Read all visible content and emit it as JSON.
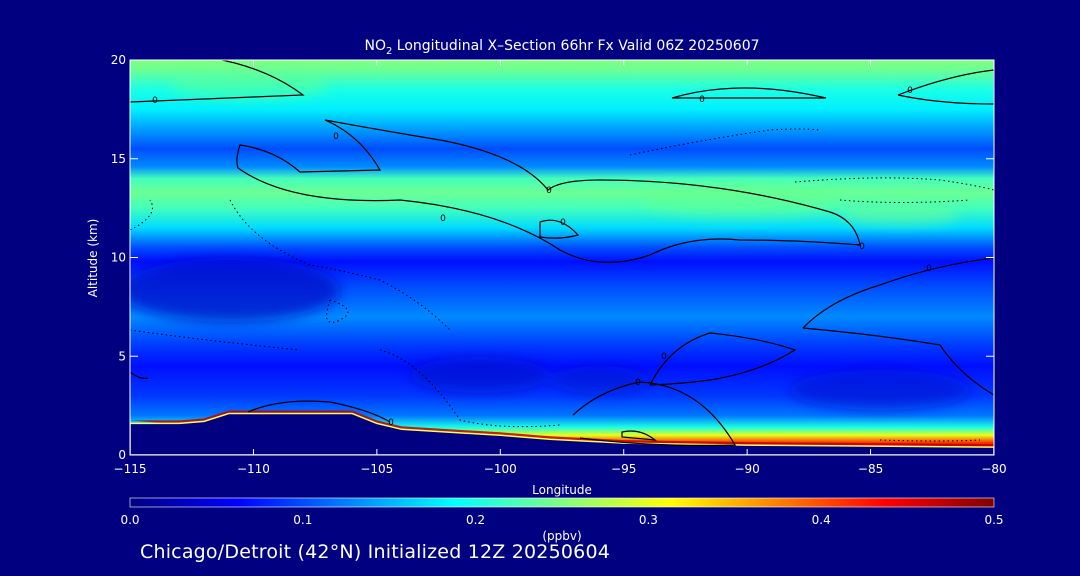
{
  "chart_data": {
    "type": "heatmap",
    "title": {
      "prefix": "NO",
      "subscript": "2",
      "suffix": " Longitudinal X–Section 66hr  Fx Valid 06Z 20250607"
    },
    "xlabel": "Longitude",
    "ylabel": "Altitude (km)",
    "xlim": [
      -115,
      -80
    ],
    "ylim": [
      0,
      20
    ],
    "x_ticks": [
      -115,
      -110,
      -105,
      -100,
      -95,
      -90,
      -85,
      -80
    ],
    "x_tick_labels": [
      "−115",
      "−110",
      "−105",
      "−100",
      "−95",
      "−90",
      "−85",
      "−80"
    ],
    "y_ticks": [
      0,
      5,
      10,
      15,
      20
    ],
    "y_tick_labels": [
      "0",
      "5",
      "10",
      "15",
      "20"
    ],
    "colorbar": {
      "label": "(ppbv)",
      "min": 0.0,
      "max": 0.5,
      "ticks": [
        0.0,
        0.1,
        0.2,
        0.3,
        0.4,
        0.5
      ],
      "tick_labels": [
        "0.0",
        "0.1",
        "0.2",
        "0.3",
        "0.4",
        "0.5"
      ],
      "colors": [
        "#000080",
        "#0000ff",
        "#0080ff",
        "#00ffff",
        "#80ff80",
        "#ffff00",
        "#ff8000",
        "#ff0000",
        "#800000"
      ]
    },
    "altitude_profile_ppbv": [
      [
        0.0,
        0.5
      ],
      [
        0.6,
        0.42
      ],
      [
        1.0,
        0.3
      ],
      [
        1.4,
        0.2
      ],
      [
        2.0,
        0.12
      ],
      [
        3.0,
        0.09
      ],
      [
        4.5,
        0.07
      ],
      [
        5.5,
        0.09
      ],
      [
        7.0,
        0.13
      ],
      [
        8.5,
        0.1
      ],
      [
        9.8,
        0.07
      ],
      [
        10.5,
        0.1
      ],
      [
        11.5,
        0.17
      ],
      [
        12.5,
        0.22
      ],
      [
        13.3,
        0.24
      ],
      [
        14.0,
        0.22
      ],
      [
        14.6,
        0.13
      ],
      [
        15.5,
        0.1
      ],
      [
        16.5,
        0.14
      ],
      [
        17.5,
        0.18
      ],
      [
        18.5,
        0.2
      ],
      [
        19.5,
        0.24
      ],
      [
        20.0,
        0.25
      ]
    ],
    "terrain_km": [
      [
        -115,
        1.6
      ],
      [
        -113,
        1.6
      ],
      [
        -112,
        1.7
      ],
      [
        -111,
        2.1
      ],
      [
        -110,
        2.1
      ],
      [
        -109,
        2.1
      ],
      [
        -106,
        2.1
      ],
      [
        -105,
        1.6
      ],
      [
        -104,
        1.3
      ],
      [
        -100,
        1.0
      ],
      [
        -98,
        0.8
      ],
      [
        -95,
        0.6
      ],
      [
        -90,
        0.5
      ],
      [
        -80,
        0.4
      ]
    ],
    "contour_level_label": "0"
  },
  "footer": {
    "text": "Chicago/Detroit (42°N) Initialized 12Z 20250604"
  }
}
